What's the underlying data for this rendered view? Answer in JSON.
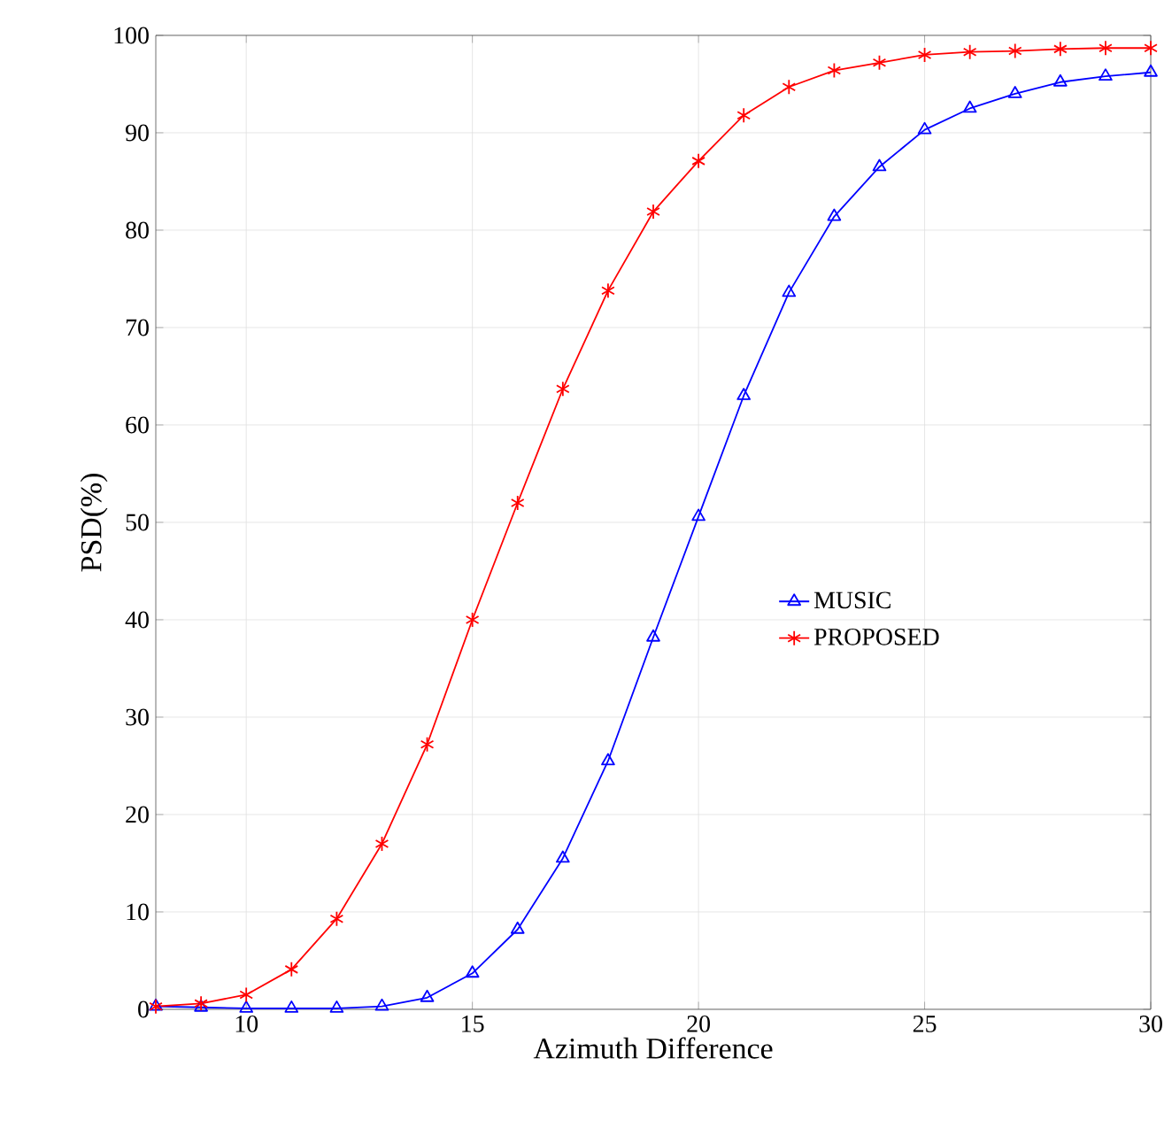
{
  "chart_data": {
    "type": "line",
    "xlabel": "Azimuth Difference",
    "ylabel": "PSD(%)",
    "x": [
      8,
      9,
      10,
      11,
      12,
      13,
      14,
      15,
      16,
      17,
      18,
      19,
      20,
      21,
      22,
      23,
      24,
      25,
      26,
      27,
      28,
      29,
      30
    ],
    "series": [
      {
        "name": "MUSIC",
        "color": "#0000ff",
        "marker": "triangle",
        "values": [
          0.3,
          0.2,
          0.1,
          0.1,
          0.1,
          0.3,
          1.2,
          3.7,
          8.2,
          15.5,
          25.5,
          38.2,
          50.6,
          63,
          73.6,
          81.4,
          86.5,
          90.3,
          92.5,
          94,
          95.2,
          95.8,
          96.2
        ]
      },
      {
        "name": "PROPOSED",
        "color": "#ff0000",
        "marker": "cross",
        "values": [
          0.3,
          0.6,
          1.5,
          4.1,
          9.3,
          17,
          27.2,
          40,
          52,
          63.7,
          73.8,
          81.9,
          87.1,
          91.8,
          94.7,
          96.4,
          97.2,
          98,
          98.3,
          98.4,
          98.6,
          98.7,
          98.7
        ]
      }
    ],
    "xlim": [
      8,
      30
    ],
    "ylim": [
      0,
      100
    ],
    "xticks": [
      10,
      15,
      20,
      25,
      30
    ],
    "yticks": [
      0,
      10,
      20,
      30,
      40,
      50,
      60,
      70,
      80,
      90,
      100
    ],
    "grid": true,
    "legend": "right",
    "line_style": "solid"
  }
}
